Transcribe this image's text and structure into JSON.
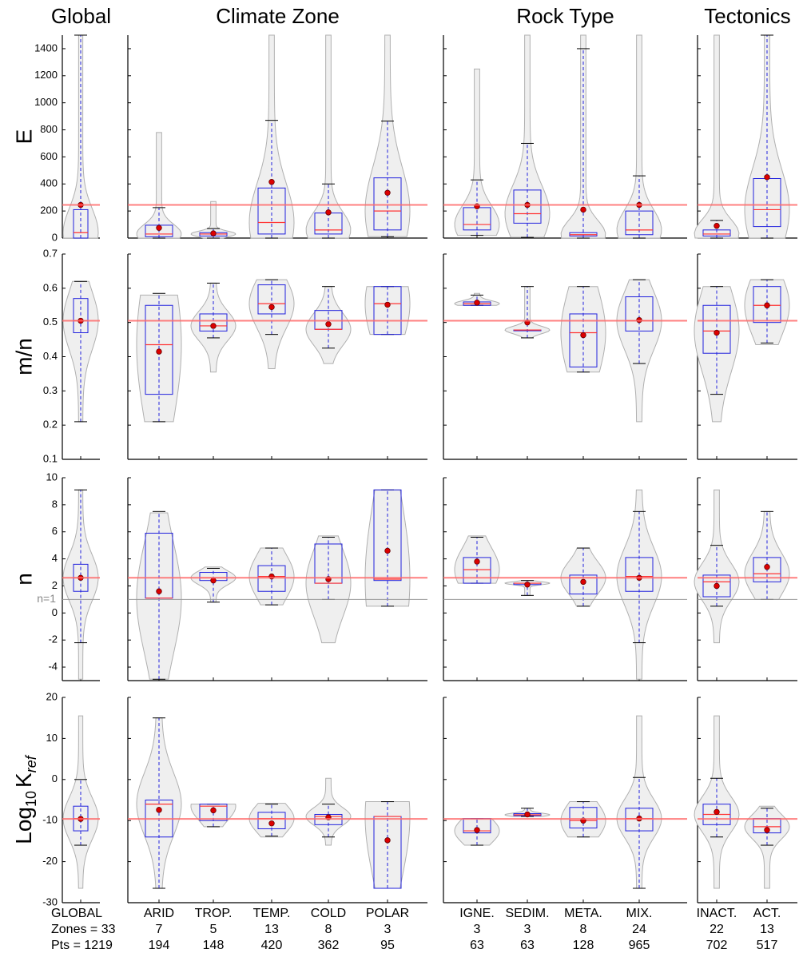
{
  "chart_data": {
    "type": "violin",
    "groups": [
      {
        "title": "Global",
        "categories": [
          {
            "label": "GLOBAL",
            "zones": {
              "value": 33,
              "label": "Zones = 33"
            },
            "pts": {
              "value": 1219,
              "label": "Pts = 1219"
            }
          }
        ]
      },
      {
        "title": "Climate Zone",
        "categories": [
          {
            "label": "ARID",
            "zones": 7,
            "pts": 194
          },
          {
            "label": "TROP.",
            "zones": 5,
            "pts": 148
          },
          {
            "label": "TEMP.",
            "zones": 13,
            "pts": 420
          },
          {
            "label": "COLD",
            "zones": 8,
            "pts": 362
          },
          {
            "label": "POLAR",
            "zones": 3,
            "pts": 95
          }
        ]
      },
      {
        "title": "Rock Type",
        "categories": [
          {
            "label": "IGNE.",
            "zones": 3,
            "pts": 63
          },
          {
            "label": "SEDIM.",
            "zones": 3,
            "pts": 63
          },
          {
            "label": "META.",
            "zones": 8,
            "pts": 128
          },
          {
            "label": "MIX.",
            "zones": 24,
            "pts": 965
          }
        ]
      },
      {
        "title": "Tectonics",
        "categories": [
          {
            "label": "INACT.",
            "zones": 22,
            "pts": 702
          },
          {
            "label": "ACT.",
            "zones": 13,
            "pts": 517
          }
        ]
      }
    ],
    "rows": [
      {
        "ylabel": "E",
        "ylim": [
          0,
          1500
        ],
        "yticks": [
          0,
          200,
          400,
          600,
          800,
          1000,
          1200,
          1400
        ],
        "reference": 245,
        "stats": [
          {
            "mean": 245,
            "median": 40,
            "q1": 0,
            "q3": 210,
            "whisker_low": 0,
            "whisker_high": 1500,
            "min": 0,
            "max": 1500
          },
          {
            "mean": 75,
            "median": 30,
            "q1": 10,
            "q3": 95,
            "whisker_low": 0,
            "whisker_high": 225,
            "min": 0,
            "max": 780
          },
          {
            "mean": 35,
            "median": 30,
            "q1": 15,
            "q3": 40,
            "whisker_low": 0,
            "whisker_high": 70,
            "min": 0,
            "max": 270
          },
          {
            "mean": 415,
            "median": 115,
            "q1": 30,
            "q3": 370,
            "whisker_low": 0,
            "whisker_high": 870,
            "min": 0,
            "max": 1500
          },
          {
            "mean": 190,
            "median": 60,
            "q1": 30,
            "q3": 185,
            "whisker_low": 0,
            "whisker_high": 400,
            "min": 0,
            "max": 1500
          },
          {
            "mean": 335,
            "median": 200,
            "q1": 60,
            "q3": 445,
            "whisker_low": 10,
            "whisker_high": 865,
            "min": 10,
            "max": 1500
          },
          {
            "mean": 235,
            "median": 100,
            "q1": 60,
            "q3": 225,
            "whisker_low": 20,
            "whisker_high": 430,
            "min": 20,
            "max": 1250
          },
          {
            "mean": 245,
            "median": 180,
            "q1": 110,
            "q3": 355,
            "whisker_low": 5,
            "whisker_high": 700,
            "min": 5,
            "max": 1500
          },
          {
            "mean": 210,
            "median": 25,
            "q1": 15,
            "q3": 40,
            "whisker_low": 0,
            "whisker_high": 1400,
            "min": 0,
            "max": 1500
          },
          {
            "mean": 245,
            "median": 60,
            "q1": 25,
            "q3": 200,
            "whisker_low": 0,
            "whisker_high": 460,
            "min": 0,
            "max": 1500
          },
          {
            "mean": 90,
            "median": 30,
            "q1": 15,
            "q3": 60,
            "whisker_low": 0,
            "whisker_high": 130,
            "min": 0,
            "max": 1500
          },
          {
            "mean": 450,
            "median": 210,
            "q1": 85,
            "q3": 440,
            "whisker_low": 0,
            "whisker_high": 1500,
            "min": 0,
            "max": 1500
          }
        ]
      },
      {
        "ylabel": "m/n",
        "ylim": [
          0.1,
          0.7
        ],
        "yticks": [
          0.1,
          0.2,
          0.3,
          0.4,
          0.5,
          0.6,
          0.7
        ],
        "reference": 0.505,
        "stats": [
          {
            "mean": 0.505,
            "median": 0.505,
            "q1": 0.47,
            "q3": 0.57,
            "whisker_low": 0.21,
            "whisker_high": 0.62,
            "min": 0.21,
            "max": 0.62
          },
          {
            "mean": 0.415,
            "median": 0.435,
            "q1": 0.29,
            "q3": 0.55,
            "whisker_low": 0.21,
            "whisker_high": 0.585,
            "min": 0.21,
            "max": 0.58
          },
          {
            "mean": 0.49,
            "median": 0.49,
            "q1": 0.475,
            "q3": 0.525,
            "whisker_low": 0.455,
            "whisker_high": 0.615,
            "min": 0.355,
            "max": 0.615
          },
          {
            "mean": 0.545,
            "median": 0.555,
            "q1": 0.525,
            "q3": 0.61,
            "whisker_low": 0.465,
            "whisker_high": 0.625,
            "min": 0.365,
            "max": 0.625
          },
          {
            "mean": 0.495,
            "median": 0.48,
            "q1": 0.48,
            "q3": 0.535,
            "whisker_low": 0.425,
            "whisker_high": 0.605,
            "min": 0.38,
            "max": 0.605
          },
          {
            "mean": 0.552,
            "median": 0.555,
            "q1": 0.465,
            "q3": 0.605,
            "whisker_low": 0.465,
            "whisker_high": 0.605,
            "min": 0.465,
            "max": 0.605
          },
          {
            "mean": 0.558,
            "median": 0.555,
            "q1": 0.55,
            "q3": 0.56,
            "whisker_low": 0.55,
            "whisker_high": 0.58,
            "min": 0.55,
            "max": 0.585
          },
          {
            "mean": 0.5,
            "median": 0.478,
            "q1": 0.478,
            "q3": 0.478,
            "whisker_low": 0.455,
            "whisker_high": 0.605,
            "min": 0.455,
            "max": 0.605
          },
          {
            "mean": 0.463,
            "median": 0.47,
            "q1": 0.37,
            "q3": 0.525,
            "whisker_low": 0.355,
            "whisker_high": 0.605,
            "min": 0.355,
            "max": 0.605
          },
          {
            "mean": 0.507,
            "median": 0.505,
            "q1": 0.475,
            "q3": 0.575,
            "whisker_low": 0.38,
            "whisker_high": 0.625,
            "min": 0.21,
            "max": 0.625
          },
          {
            "mean": 0.47,
            "median": 0.475,
            "q1": 0.41,
            "q3": 0.55,
            "whisker_low": 0.29,
            "whisker_high": 0.605,
            "min": 0.21,
            "max": 0.605
          },
          {
            "mean": 0.55,
            "median": 0.55,
            "q1": 0.5,
            "q3": 0.605,
            "whisker_low": 0.44,
            "whisker_high": 0.625,
            "min": 0.435,
            "max": 0.625
          }
        ]
      },
      {
        "ylabel": "n",
        "ylim": [
          -5,
          10
        ],
        "yticks": [
          -4,
          -2,
          0,
          2,
          4,
          6,
          8,
          10
        ],
        "reference": 2.6,
        "guide": {
          "value": 1,
          "label": "n=1"
        },
        "stats": [
          {
            "mean": 2.6,
            "median": 2.6,
            "q1": 1.6,
            "q3": 3.6,
            "whisker_low": -2.2,
            "whisker_high": 9.1,
            "min": -4.9,
            "max": 9.1
          },
          {
            "mean": 1.6,
            "median": 1.1,
            "q1": 1.1,
            "q3": 5.9,
            "whisker_low": -4.9,
            "whisker_high": 7.5,
            "min": -4.9,
            "max": 7.4
          },
          {
            "mean": 2.4,
            "median": 2.6,
            "q1": 2.4,
            "q3": 3.0,
            "whisker_low": 0.8,
            "whisker_high": 3.3,
            "min": 0.8,
            "max": 3.4
          },
          {
            "mean": 2.7,
            "median": 2.7,
            "q1": 1.6,
            "q3": 3.5,
            "whisker_low": 0.6,
            "whisker_high": 4.8,
            "min": 0.6,
            "max": 4.8
          },
          {
            "mean": 2.5,
            "median": 2.2,
            "q1": 2.2,
            "q3": 5.1,
            "whisker_low": 1.0,
            "whisker_high": 5.6,
            "min": -2.2,
            "max": 5.7
          },
          {
            "mean": 4.6,
            "median": 2.5,
            "q1": 2.4,
            "q3": 9.1,
            "whisker_low": 0.5,
            "whisker_high": 9.1,
            "min": 0.5,
            "max": 9.1
          },
          {
            "mean": 3.8,
            "median": 3.2,
            "q1": 2.2,
            "q3": 4.1,
            "whisker_low": 2.2,
            "whisker_high": 5.6,
            "min": 2.2,
            "max": 5.7
          },
          {
            "mean": 2.1,
            "median": 2.2,
            "q1": 2.1,
            "q3": 2.2,
            "whisker_low": 1.3,
            "whisker_high": 2.4,
            "min": 1.3,
            "max": 2.4
          },
          {
            "mean": 2.3,
            "median": 2.6,
            "q1": 1.4,
            "q3": 2.8,
            "whisker_low": 0.5,
            "whisker_high": 4.8,
            "min": 0.5,
            "max": 4.8
          },
          {
            "mean": 2.6,
            "median": 2.7,
            "q1": 1.6,
            "q3": 4.1,
            "whisker_low": -2.2,
            "whisker_high": 7.5,
            "min": -4.9,
            "max": 9.1
          },
          {
            "mean": 2.0,
            "median": 2.3,
            "q1": 1.2,
            "q3": 2.8,
            "whisker_low": 0.5,
            "whisker_high": 5.0,
            "min": -2.2,
            "max": 9.1
          },
          {
            "mean": 3.4,
            "median": 2.9,
            "q1": 2.3,
            "q3": 4.1,
            "whisker_low": 1.0,
            "whisker_high": 7.5,
            "min": 1.0,
            "max": 7.5
          }
        ]
      },
      {
        "ylabel": {
          "base": "Log",
          "sub": "10",
          "main": "K",
          "sub2": "ref"
        },
        "ylim": [
          -30,
          20
        ],
        "yticks": [
          -30,
          -20,
          -10,
          0,
          10,
          20
        ],
        "reference": -9.6,
        "stats": [
          {
            "mean": -9.6,
            "median": -9.5,
            "q1": -12.5,
            "q3": -6.5,
            "whisker_low": -16,
            "whisker_high": 0,
            "min": -26.5,
            "max": 15.5
          },
          {
            "mean": -7.4,
            "median": -6,
            "q1": -14,
            "q3": -5,
            "whisker_low": -26.5,
            "whisker_high": 15,
            "min": -26.5,
            "max": 15
          },
          {
            "mean": -7.5,
            "median": -6.5,
            "q1": -10,
            "q3": -6,
            "whisker_low": -11.5,
            "whisker_high": -6,
            "min": -11.5,
            "max": -6
          },
          {
            "mean": -10.7,
            "median": -9.5,
            "q1": -12,
            "q3": -8,
            "whisker_low": -13.8,
            "whisker_high": -6,
            "min": -14,
            "max": -5.8
          },
          {
            "mean": -9.2,
            "median": -9,
            "q1": -11,
            "q3": -8.5,
            "whisker_low": -14,
            "whisker_high": -6,
            "min": -16,
            "max": 0.3
          },
          {
            "mean": -14.8,
            "median": -9,
            "q1": -26.5,
            "q3": -9,
            "whisker_low": -26.5,
            "whisker_high": -5.4,
            "min": -26.5,
            "max": -5.4
          },
          {
            "mean": -12.3,
            "median": -12.5,
            "q1": -13,
            "q3": -9.5,
            "whisker_low": -16,
            "whisker_high": -9.5,
            "min": -16,
            "max": -9.5
          },
          {
            "mean": -8.5,
            "median": -8.6,
            "q1": -8.8,
            "q3": -8.3,
            "whisker_low": -9,
            "whisker_high": -7,
            "min": -9,
            "max": -7
          },
          {
            "mean": -10,
            "median": -10,
            "q1": -11.8,
            "q3": -6.8,
            "whisker_low": -14,
            "whisker_high": -5.4,
            "min": -14,
            "max": -5.4
          },
          {
            "mean": -9.5,
            "median": -9.5,
            "q1": -12.5,
            "q3": -7,
            "whisker_low": -26.5,
            "whisker_high": 0.5,
            "min": -26.5,
            "max": 15.5
          },
          {
            "mean": -7.9,
            "median": -8.5,
            "q1": -11,
            "q3": -6,
            "whisker_low": -14,
            "whisker_high": 0.3,
            "min": -26.5,
            "max": 15.5
          },
          {
            "mean": -12.3,
            "median": -11.5,
            "q1": -13,
            "q3": -9.5,
            "whisker_low": -16,
            "whisker_high": -7,
            "min": -26.5,
            "max": -6.5
          }
        ]
      }
    ]
  }
}
